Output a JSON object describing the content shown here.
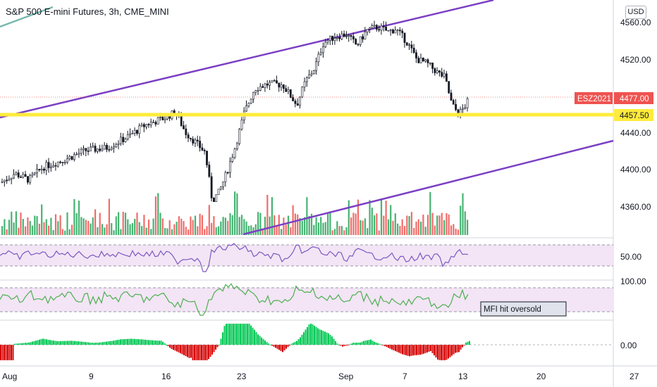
{
  "header": {
    "title": "S&P 500 E-mini Futures, 3h, CME_MINI",
    "currency_button": "USD"
  },
  "price_axis": {
    "ticks": [
      "4560.00",
      "4520.00",
      "4440.00",
      "4400.00",
      "4360.00"
    ],
    "tick_values": [
      4560,
      4520,
      4440,
      4400,
      4360
    ],
    "symbol_tag": "ESZ2021",
    "last_price_label": "4477.00",
    "last_price": 4477.0,
    "horizontal_level_label": "4457.50",
    "horizontal_level": 4457.5
  },
  "rsi_pane": {
    "mid_label": "50.00"
  },
  "mfi_pane": {
    "top_label": "100.00",
    "annotation": "MFI hit oversold"
  },
  "histogram_pane": {
    "zero_label": "0.00"
  },
  "time_axis": {
    "labels": [
      "Aug",
      "9",
      "16",
      "23",
      "Sep",
      "7",
      "13",
      "20",
      "27"
    ]
  },
  "colors": {
    "up": "#26a69a",
    "down": "#ef5350",
    "vol_up": "#26a65b",
    "vol_down": "#ef5350",
    "channel": "#7b3fc4",
    "level": "#ffeb3b",
    "trendline_teal": "#79b9b0",
    "indicator_band": "#f3e5f5",
    "indicator_line": "#7e57c2",
    "mfi_line": "#4caf50",
    "last_price_tag": "#ef5350",
    "hist_pos": "#00c853",
    "hist_neg": "#d50000"
  },
  "icons": [
    "currency-button"
  ]
}
